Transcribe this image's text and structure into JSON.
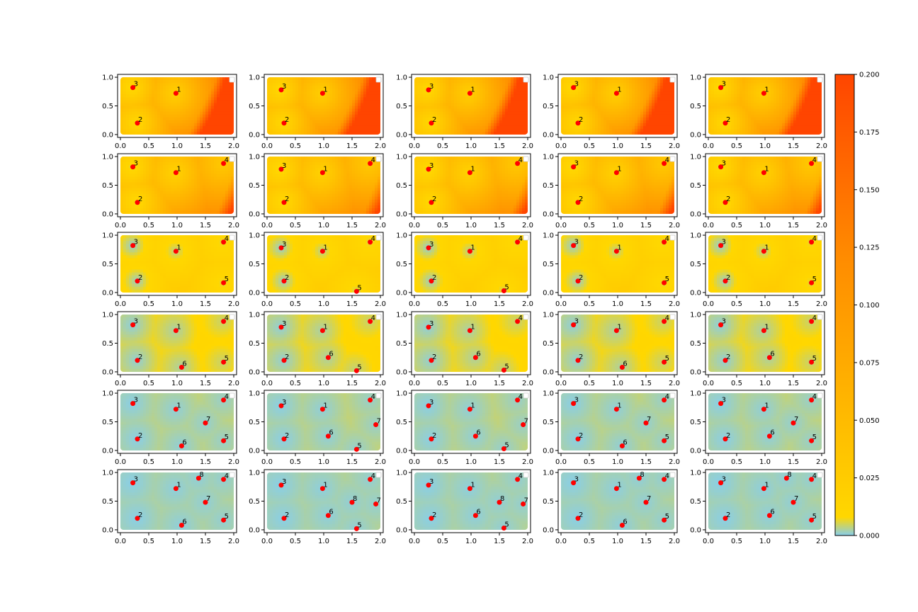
{
  "chart_data": {
    "type": "heatmap",
    "layout": {
      "rows": 6,
      "cols": 5
    },
    "xlim": [
      -0.05,
      2.05
    ],
    "ylim": [
      -0.05,
      1.05
    ],
    "xticks": [
      "0.0",
      "0.5",
      "1.0",
      "1.5",
      "2.0"
    ],
    "yticks": [
      "0.0",
      "0.5",
      "1.0"
    ],
    "xtick_values": [
      0.0,
      0.5,
      1.0,
      1.5,
      2.0
    ],
    "ytick_values": [
      0.0,
      0.5,
      1.0
    ],
    "colorbar": {
      "min": 0.0,
      "max": 0.2,
      "ticks": [
        "0.000",
        "0.025",
        "0.050",
        "0.075",
        "0.100",
        "0.125",
        "0.150",
        "0.175",
        "0.200"
      ],
      "tick_values": [
        0.0,
        0.025,
        0.05,
        0.075,
        0.1,
        0.125,
        0.15,
        0.175,
        0.2
      ],
      "colors": [
        "#87ceeb",
        "#ffd700",
        "#ff8c00",
        "#ff4500"
      ]
    },
    "marker_color": "#ff0000",
    "grid": false,
    "legend": "top-right (empty)",
    "column_points": [
      {
        "1": [
          0.98,
          0.72
        ],
        "2": [
          0.3,
          0.2
        ],
        "3": [
          0.22,
          0.82
        ],
        "4": [
          1.82,
          0.88
        ],
        "5": [
          1.82,
          0.17
        ],
        "6": [
          1.08,
          0.08
        ],
        "7": [
          1.5,
          0.48
        ],
        "8": [
          1.38,
          0.9
        ]
      },
      {
        "1": [
          0.98,
          0.72
        ],
        "2": [
          0.3,
          0.2
        ],
        "3": [
          0.25,
          0.78
        ],
        "4": [
          1.82,
          0.88
        ],
        "5": [
          1.58,
          0.02
        ],
        "6": [
          1.08,
          0.25
        ],
        "7": [
          1.92,
          0.45
        ],
        "8": [
          1.5,
          0.48
        ]
      },
      {
        "1": [
          0.98,
          0.72
        ],
        "2": [
          0.3,
          0.2
        ],
        "3": [
          0.25,
          0.78
        ],
        "4": [
          1.82,
          0.88
        ],
        "5": [
          1.58,
          0.03
        ],
        "6": [
          1.08,
          0.25
        ],
        "7": [
          1.92,
          0.45
        ],
        "8": [
          1.5,
          0.48
        ]
      },
      {
        "1": [
          0.98,
          0.72
        ],
        "2": [
          0.3,
          0.2
        ],
        "3": [
          0.22,
          0.82
        ],
        "4": [
          1.82,
          0.88
        ],
        "5": [
          1.82,
          0.17
        ],
        "6": [
          1.08,
          0.08
        ],
        "7": [
          1.5,
          0.48
        ],
        "8": [
          1.38,
          0.9
        ]
      },
      {
        "1": [
          0.98,
          0.72
        ],
        "2": [
          0.3,
          0.2
        ],
        "3": [
          0.22,
          0.82
        ],
        "4": [
          1.82,
          0.88
        ],
        "5": [
          1.82,
          0.17
        ],
        "6": [
          1.08,
          0.25
        ],
        "7": [
          1.5,
          0.48
        ],
        "8": [
          1.38,
          0.9
        ]
      }
    ],
    "row_labels_visible": [
      [
        "1",
        "2",
        "3"
      ],
      [
        "1",
        "2",
        "3",
        "4"
      ],
      [
        "1",
        "2",
        "3",
        "4",
        "5"
      ],
      [
        "1",
        "2",
        "3",
        "4",
        "5",
        "6"
      ],
      [
        "1",
        "2",
        "3",
        "4",
        "5",
        "6",
        "7"
      ],
      [
        "1",
        "2",
        "3",
        "4",
        "5",
        "6",
        "7",
        "8"
      ]
    ],
    "row_intensity": [
      {
        "base": 0.07,
        "ramp": 0.13,
        "hot_corner": "right-bottom-large"
      },
      {
        "base": 0.06,
        "ramp": 0.1,
        "hot_corner": "right-bottom-small"
      },
      {
        "base": 0.02,
        "ramp": 0.02,
        "hot_corner": "none"
      },
      {
        "base": 0.008,
        "ramp": 0.015,
        "hot_corner": "none"
      },
      {
        "base": 0.004,
        "ramp": 0.004,
        "hot_corner": "none"
      },
      {
        "base": 0.003,
        "ramp": 0.003,
        "hot_corner": "none"
      }
    ]
  }
}
